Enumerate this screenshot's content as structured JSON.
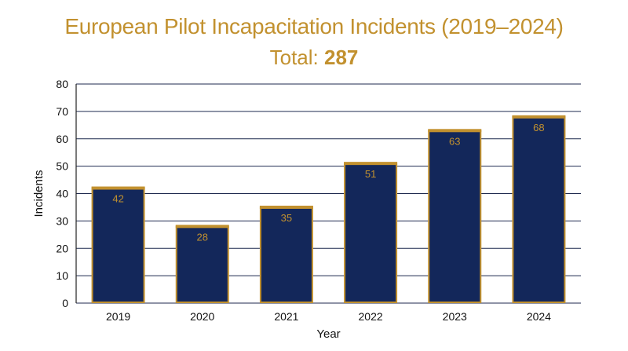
{
  "title": "European Pilot Incapacitation Incidents (2019–2024)",
  "subtitle": {
    "prefix": "Total:",
    "value": "287"
  },
  "colors": {
    "bar_fill": "#13275a",
    "bar_edge": "#c2912f",
    "title": "#c2912f",
    "grid": "#1f2a4f"
  },
  "chart_data": {
    "type": "bar",
    "title": "European Pilot Incapacitation Incidents (2019–2024)",
    "xlabel": "Year",
    "ylabel": "Incidents",
    "categories": [
      "2019",
      "2020",
      "2021",
      "2022",
      "2023",
      "2024"
    ],
    "values": [
      42,
      28,
      35,
      51,
      63,
      68
    ],
    "ylim": [
      0,
      80
    ],
    "yticks": [
      0,
      10,
      20,
      30,
      40,
      50,
      60,
      70,
      80
    ],
    "grid": true,
    "data_labels": true
  }
}
